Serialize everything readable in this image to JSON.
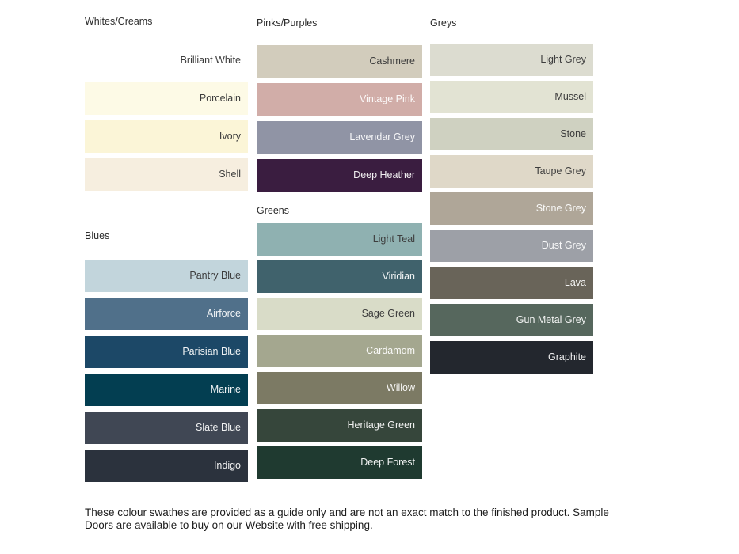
{
  "page": {
    "background": "#ffffff"
  },
  "groups": [
    {
      "id": "whites-creams",
      "title": "Whites/Creams",
      "swatches": [
        {
          "label": "Brilliant White",
          "color": "#FFFFFF",
          "text_tone": "dark"
        },
        {
          "label": "Porcelain",
          "color": "#FDFAE6",
          "text_tone": "dark"
        },
        {
          "label": "Ivory",
          "color": "#FBF5D7",
          "text_tone": "dark"
        },
        {
          "label": "Shell",
          "color": "#F6EEDF",
          "text_tone": "dark"
        }
      ]
    },
    {
      "id": "blues",
      "title": "Blues",
      "swatches": [
        {
          "label": "Pantry Blue",
          "color": "#C2D5DC",
          "text_tone": "dark"
        },
        {
          "label": "Airforce",
          "color": "#50708A",
          "text_tone": "light"
        },
        {
          "label": "Parisian Blue",
          "color": "#1C4867",
          "text_tone": "light"
        },
        {
          "label": "Marine",
          "color": "#033E51",
          "text_tone": "light"
        },
        {
          "label": "Slate Blue",
          "color": "#404754",
          "text_tone": "light"
        },
        {
          "label": "Indigo",
          "color": "#2B323D",
          "text_tone": "light"
        }
      ]
    },
    {
      "id": "pinks-purples",
      "title": "Pinks/Purples",
      "swatches": [
        {
          "label": "Cashmere",
          "color": "#D2CCBC",
          "text_tone": "dark"
        },
        {
          "label": "Vintage Pink",
          "color": "#D1ADA8",
          "text_tone": "light"
        },
        {
          "label": "Lavendar Grey",
          "color": "#9094A5",
          "text_tone": "light"
        },
        {
          "label": "Deep Heather",
          "color": "#3A1D40",
          "text_tone": "light"
        }
      ]
    },
    {
      "id": "greens",
      "title": "Greens",
      "swatches": [
        {
          "label": "Light Teal",
          "color": "#8FB1B1",
          "text_tone": "dark"
        },
        {
          "label": "Viridian",
          "color": "#40626C",
          "text_tone": "light"
        },
        {
          "label": "Sage Green",
          "color": "#D9DCC8",
          "text_tone": "dark"
        },
        {
          "label": "Cardamom",
          "color": "#A4A78F",
          "text_tone": "light"
        },
        {
          "label": "Willow",
          "color": "#7C7A64",
          "text_tone": "light"
        },
        {
          "label": "Heritage Green",
          "color": "#36463B",
          "text_tone": "light"
        },
        {
          "label": "Deep Forest",
          "color": "#1F3A30",
          "text_tone": "light"
        }
      ]
    },
    {
      "id": "greys",
      "title": "Greys",
      "swatches": [
        {
          "label": "Light Grey",
          "color": "#DCDCD0",
          "text_tone": "dark"
        },
        {
          "label": "Mussel",
          "color": "#E2E3D3",
          "text_tone": "dark"
        },
        {
          "label": "Stone",
          "color": "#CFD1C1",
          "text_tone": "dark"
        },
        {
          "label": "Taupe Grey",
          "color": "#DFD8C8",
          "text_tone": "dark"
        },
        {
          "label": "Stone Grey",
          "color": "#AFA698",
          "text_tone": "light"
        },
        {
          "label": "Dust Grey",
          "color": "#9DA0A7",
          "text_tone": "light"
        },
        {
          "label": "Lava",
          "color": "#696459",
          "text_tone": "light"
        },
        {
          "label": "Gun Metal Grey",
          "color": "#56675D",
          "text_tone": "light"
        },
        {
          "label": "Graphite",
          "color": "#23272E",
          "text_tone": "light"
        }
      ]
    }
  ],
  "disclaimer": {
    "line1": "These colour swathes are provided as a guide only and are not an exact match to the finished product.  Sample",
    "line2": "Doors are available to buy on our Website with free shipping."
  }
}
